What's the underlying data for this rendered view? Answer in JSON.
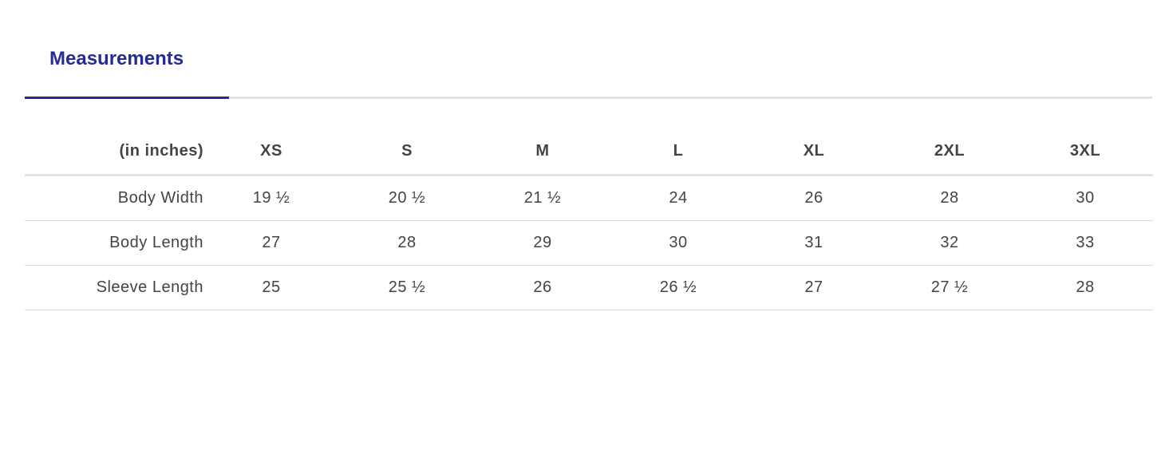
{
  "tabs": [
    {
      "label": "Measurements",
      "active": true
    }
  ],
  "accent": "#252b93",
  "table": {
    "unit_label": "(in inches)",
    "sizes": [
      "XS",
      "S",
      "M",
      "L",
      "XL",
      "2XL",
      "3XL"
    ],
    "rows": [
      {
        "label": "Body Width",
        "values": [
          "19 ½",
          "20 ½",
          "21 ½",
          "24",
          "26",
          "28",
          "30"
        ]
      },
      {
        "label": "Body Length",
        "values": [
          "27",
          "28",
          "29",
          "30",
          "31",
          "32",
          "33"
        ]
      },
      {
        "label": "Sleeve Length",
        "values": [
          "25",
          "25 ½",
          "26",
          "26 ½",
          "27",
          "27 ½",
          "28"
        ]
      }
    ]
  }
}
